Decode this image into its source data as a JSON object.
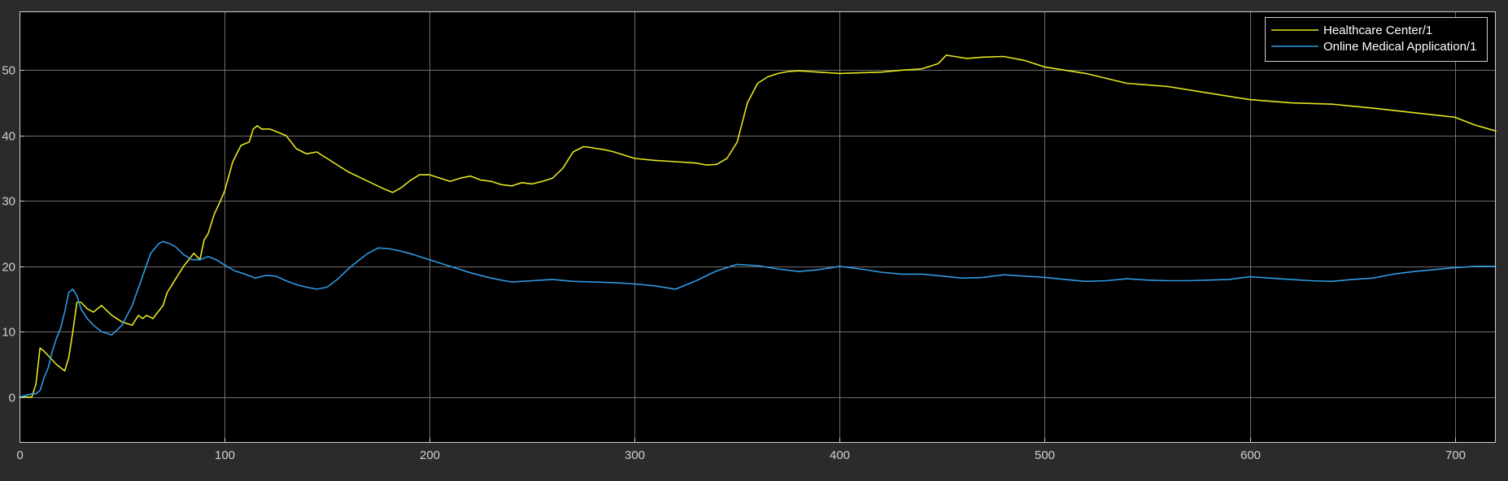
{
  "chart_data": {
    "type": "line",
    "title": "",
    "xlabel": "",
    "ylabel": "",
    "xlim": [
      0,
      720
    ],
    "ylim": [
      -7,
      59
    ],
    "xticks": [
      0,
      100,
      200,
      300,
      400,
      500,
      600,
      700
    ],
    "yticks": [
      0,
      10,
      20,
      30,
      40,
      50
    ],
    "grid": true,
    "legend_position": "top-right",
    "colors": {
      "background": "#000000",
      "figure": "#2b2b2b",
      "grid": "#6e6e6e",
      "axis": "#cfcfcf"
    },
    "series": [
      {
        "name": "Healthcare Center/1",
        "color": "#e6e61e",
        "x": [
          0,
          6,
          8,
          10,
          12,
          18,
          22,
          24,
          26,
          28,
          30,
          33,
          36,
          40,
          45,
          50,
          55,
          58,
          60,
          62,
          65,
          70,
          72,
          75,
          78,
          80,
          85,
          88,
          90,
          92,
          95,
          98,
          100,
          104,
          108,
          112,
          114,
          116,
          118,
          122,
          126,
          130,
          135,
          140,
          145,
          150,
          160,
          170,
          178,
          182,
          186,
          190,
          195,
          200,
          205,
          210,
          215,
          220,
          225,
          230,
          235,
          240,
          245,
          250,
          255,
          260,
          265,
          270,
          275,
          278,
          282,
          286,
          290,
          295,
          300,
          310,
          320,
          330,
          335,
          340,
          345,
          350,
          355,
          360,
          365,
          370,
          375,
          380,
          385,
          390,
          400,
          410,
          420,
          430,
          440,
          448,
          452,
          456,
          462,
          470,
          480,
          490,
          500,
          520,
          540,
          560,
          580,
          600,
          620,
          640,
          660,
          680,
          700,
          710,
          720
        ],
        "y": [
          0,
          0,
          2,
          7.5,
          7,
          5,
          4,
          6,
          10,
          14.5,
          14.5,
          13.5,
          13,
          14,
          12.5,
          11.5,
          11,
          12.5,
          12,
          12.5,
          12,
          14,
          16,
          17.5,
          19,
          20,
          22,
          21,
          24,
          25,
          28,
          30,
          31.5,
          36,
          38.5,
          39,
          41,
          41.5,
          41,
          41,
          40.5,
          40,
          38,
          37.2,
          37.5,
          36.5,
          34.5,
          33,
          31.8,
          31.3,
          32,
          33,
          34,
          34,
          33.5,
          33,
          33.5,
          33.8,
          33.2,
          33,
          32.5,
          32.3,
          32.8,
          32.6,
          33,
          33.5,
          35,
          37.5,
          38.3,
          38.2,
          38,
          37.8,
          37.5,
          37,
          36.5,
          36.2,
          36,
          35.8,
          35.5,
          35.6,
          36.5,
          39,
          45,
          48,
          49,
          49.5,
          49.8,
          49.9,
          49.8,
          49.7,
          49.5,
          49.6,
          49.7,
          50,
          50.2,
          51,
          52.3,
          52.1,
          51.8,
          52,
          52.1,
          51.5,
          50.5,
          49.5,
          48,
          47.5,
          46.5,
          45.5,
          45,
          44.8,
          44.2,
          43.5,
          42.8,
          41.6,
          40.7
        ]
      },
      {
        "name": "Online Medical Application/1",
        "color": "#2f9ae3",
        "x": [
          0,
          6,
          8,
          10,
          12,
          14,
          16,
          18,
          20,
          22,
          24,
          26,
          28,
          30,
          33,
          36,
          40,
          45,
          50,
          55,
          60,
          64,
          68,
          70,
          73,
          76,
          80,
          84,
          88,
          92,
          96,
          100,
          105,
          110,
          115,
          120,
          125,
          130,
          135,
          140,
          145,
          150,
          155,
          160,
          165,
          170,
          175,
          180,
          185,
          190,
          200,
          210,
          220,
          230,
          240,
          250,
          260,
          270,
          280,
          290,
          300,
          310,
          320,
          330,
          340,
          350,
          360,
          370,
          380,
          390,
          400,
          410,
          420,
          430,
          440,
          450,
          460,
          470,
          480,
          490,
          500,
          510,
          520,
          530,
          540,
          550,
          560,
          570,
          580,
          590,
          600,
          610,
          620,
          630,
          640,
          650,
          660,
          670,
          680,
          690,
          700,
          710,
          720
        ],
        "y": [
          0,
          0.5,
          0.5,
          1,
          3,
          4.5,
          7,
          9,
          10.5,
          13,
          16,
          16.5,
          15.5,
          13.5,
          12,
          11,
          10,
          9.5,
          11,
          14,
          18.5,
          22,
          23.5,
          23.8,
          23.5,
          23,
          21.8,
          21,
          21,
          21.5,
          21,
          20.2,
          19.3,
          18.8,
          18.2,
          18.6,
          18.5,
          17.8,
          17.2,
          16.8,
          16.5,
          16.8,
          18,
          19.5,
          20.8,
          22,
          22.8,
          22.7,
          22.4,
          22,
          21,
          20,
          19,
          18.2,
          17.6,
          17.8,
          18,
          17.7,
          17.6,
          17.5,
          17.3,
          17,
          16.5,
          17.8,
          19.3,
          20.3,
          20.1,
          19.6,
          19.2,
          19.5,
          20,
          19.6,
          19.1,
          18.8,
          18.8,
          18.5,
          18.2,
          18.3,
          18.7,
          18.5,
          18.3,
          18,
          17.7,
          17.8,
          18.1,
          17.9,
          17.8,
          17.8,
          17.9,
          18,
          18.4,
          18.2,
          18,
          17.8,
          17.7,
          18,
          18.2,
          18.8,
          19.2,
          19.5,
          19.8,
          20,
          20
        ]
      }
    ]
  }
}
